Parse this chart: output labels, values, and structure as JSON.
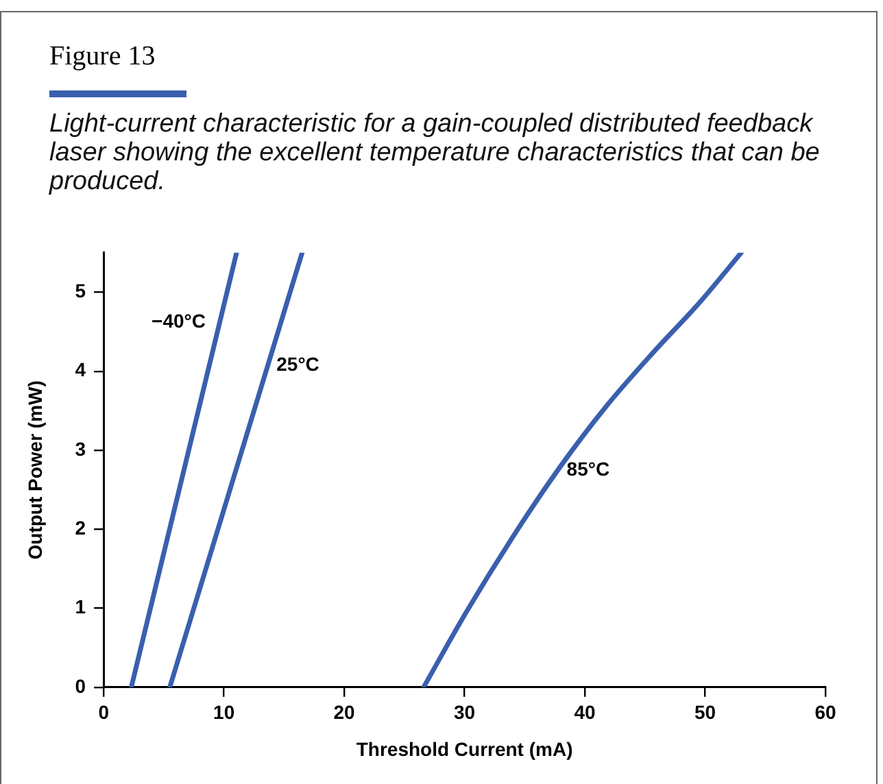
{
  "chart_data": {
    "type": "line",
    "title": "Figure 13",
    "subtitle": "Light-current characteristic for a gain-coupled distributed feedback laser showing the excellent temperature characteristics that can be produced.",
    "xlabel": "Threshold Current (mA)",
    "ylabel": "Output Power (mW)",
    "series": [
      {
        "name": "−40°C",
        "color": "#3a5fae",
        "x": [
          2.3,
          11.05
        ],
        "values": [
          0,
          5.5
        ]
      },
      {
        "name": "25°C",
        "color": "#3a5fae",
        "x": [
          5.5,
          16.5
        ],
        "values": [
          0,
          5.5
        ]
      },
      {
        "name": "85°C",
        "color": "#3a5fae",
        "x": [
          26.6,
          30.1,
          34.0,
          37.9,
          41.8,
          45.7,
          49.6,
          53.0
        ],
        "values": [
          0,
          0.94,
          1.9,
          2.78,
          3.56,
          4.24,
          4.88,
          5.5
        ]
      }
    ],
    "xlim": [
      0,
      60
    ],
    "xticks": [
      0,
      10,
      20,
      30,
      40,
      50,
      60
    ],
    "ylim": [
      0,
      5.5
    ],
    "yticks": [
      0,
      1,
      2,
      3,
      4,
      5
    ],
    "grid": false,
    "legend": false,
    "marker": "none",
    "line_style": "solid"
  }
}
